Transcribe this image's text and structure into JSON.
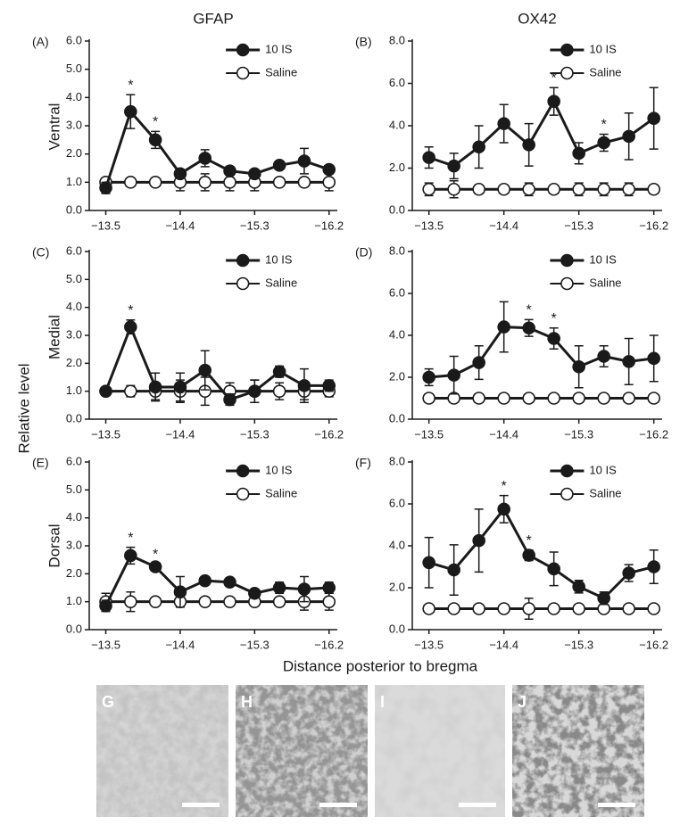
{
  "column_titles": [
    "GFAP",
    "OX42"
  ],
  "row_labels": [
    "Ventral",
    "Medial",
    "Dorsal"
  ],
  "y_label": "Relative level",
  "x_label": "Distance posterior to bregma",
  "image_labels": [
    "G",
    "H",
    "I",
    "J"
  ],
  "chart_data": [
    {
      "type": "line",
      "panel": "(A)",
      "x": [
        -13.5,
        -13.8,
        -14.1,
        -14.4,
        -14.7,
        -15.0,
        -15.3,
        -15.6,
        -15.9,
        -16.2
      ],
      "xlim": [
        -13.3,
        -16.3
      ],
      "xticks": [
        {
          "value": -13.5,
          "label": "−13.5"
        },
        {
          "value": -14.4,
          "label": "−14.4"
        },
        {
          "value": -15.3,
          "label": "−15.3"
        },
        {
          "value": -16.2,
          "label": "−16.2"
        }
      ],
      "ylim": [
        0,
        6
      ],
      "yticks": [
        {
          "value": 0,
          "label": "0.0"
        },
        {
          "value": 1,
          "label": "1.0"
        },
        {
          "value": 2,
          "label": "2.0"
        },
        {
          "value": 3,
          "label": "3.0"
        },
        {
          "value": 4,
          "label": "4.0"
        },
        {
          "value": 5,
          "label": "5.0"
        },
        {
          "value": 6,
          "label": "6.0"
        }
      ],
      "legend": "upper right",
      "series": [
        {
          "name": "10 IS",
          "color": "#1a1a1a",
          "fill": "#1a1a1a",
          "values": [
            0.8,
            3.5,
            2.5,
            1.3,
            1.85,
            1.4,
            1.3,
            1.6,
            1.75,
            1.45
          ],
          "errors": [
            0.2,
            0.6,
            0.3,
            0.1,
            0.3,
            0.15,
            0.1,
            0.1,
            0.45,
            0.1
          ]
        },
        {
          "name": "Saline",
          "color": "#1a1a1a",
          "fill": "#ffffff",
          "values": [
            1,
            1,
            1,
            1,
            1,
            1,
            1,
            1,
            1,
            1
          ],
          "errors": [
            0.15,
            0.05,
            0.15,
            0.3,
            0.3,
            0.3,
            0.3,
            0.1,
            0.15,
            0.3
          ]
        }
      ],
      "annotations": [
        {
          "text": "*",
          "x": -13.8
        },
        {
          "text": "*",
          "x": -14.1
        }
      ]
    },
    {
      "type": "line",
      "panel": "(B)",
      "x": [
        -13.5,
        -13.8,
        -14.1,
        -14.4,
        -14.7,
        -15.0,
        -15.3,
        -15.6,
        -15.9,
        -16.2
      ],
      "xlim": [
        -13.3,
        -16.3
      ],
      "xticks": [
        {
          "value": -13.5,
          "label": "−13.5"
        },
        {
          "value": -14.4,
          "label": "−14.4"
        },
        {
          "value": -15.3,
          "label": "−15.3"
        },
        {
          "value": -16.2,
          "label": "−16.2"
        }
      ],
      "ylim": [
        0,
        8
      ],
      "yticks": [
        {
          "value": 0,
          "label": "0.0"
        },
        {
          "value": 2,
          "label": "2.0"
        },
        {
          "value": 4,
          "label": "4.0"
        },
        {
          "value": 6,
          "label": "6.0"
        },
        {
          "value": 8,
          "label": "8.0"
        }
      ],
      "legend": "upper right",
      "series": [
        {
          "name": "10 IS",
          "color": "#1a1a1a",
          "fill": "#1a1a1a",
          "values": [
            2.5,
            2.1,
            3.0,
            4.1,
            3.1,
            5.15,
            2.7,
            3.2,
            3.5,
            4.35
          ],
          "errors": [
            0.5,
            0.6,
            1.0,
            0.9,
            1.0,
            0.65,
            0.5,
            0.4,
            1.1,
            1.45
          ]
        },
        {
          "name": "Saline",
          "color": "#1a1a1a",
          "fill": "#ffffff",
          "values": [
            1,
            1,
            1,
            1,
            1,
            1,
            1,
            1,
            1,
            1
          ],
          "errors": [
            0.3,
            0.4,
            0.2,
            0.2,
            0.3,
            0.2,
            0.3,
            0.3,
            0.3,
            0.2
          ]
        }
      ],
      "annotations": [
        {
          "text": "*",
          "x": -15.0
        },
        {
          "text": "*",
          "x": -15.6
        }
      ]
    },
    {
      "type": "line",
      "panel": "(C)",
      "x": [
        -13.5,
        -13.8,
        -14.1,
        -14.4,
        -14.7,
        -15.0,
        -15.3,
        -15.6,
        -15.9,
        -16.2
      ],
      "xlim": [
        -13.3,
        -16.3
      ],
      "xticks": [
        {
          "value": -13.5,
          "label": "−13.5"
        },
        {
          "value": -14.4,
          "label": "−14.4"
        },
        {
          "value": -15.3,
          "label": "−15.3"
        },
        {
          "value": -16.2,
          "label": "−16.2"
        }
      ],
      "ylim": [
        0,
        6
      ],
      "yticks": [
        {
          "value": 0,
          "label": "0.0"
        },
        {
          "value": 1,
          "label": "1.0"
        },
        {
          "value": 2,
          "label": "2.0"
        },
        {
          "value": 3,
          "label": "3.0"
        },
        {
          "value": 4,
          "label": "4.0"
        },
        {
          "value": 5,
          "label": "5.0"
        },
        {
          "value": 6,
          "label": "6.0"
        }
      ],
      "legend": "upper right",
      "series": [
        {
          "name": "10 IS",
          "color": "#1a1a1a",
          "fill": "#1a1a1a",
          "values": [
            1.0,
            3.3,
            1.15,
            1.15,
            1.75,
            0.7,
            1.0,
            1.7,
            1.2,
            1.2
          ],
          "errors": [
            0.1,
            0.25,
            0.5,
            0.5,
            0.7,
            0.2,
            0.4,
            0.2,
            0.6,
            0.2
          ]
        },
        {
          "name": "Saline",
          "color": "#1a1a1a",
          "fill": "#ffffff",
          "values": [
            1,
            1,
            1,
            1,
            1,
            1,
            1,
            1,
            1,
            1
          ],
          "errors": [
            0.1,
            0.2,
            0.3,
            0.4,
            0.5,
            0.3,
            0.4,
            0.3,
            0.3,
            0.2
          ]
        }
      ],
      "annotations": [
        {
          "text": "*",
          "x": -13.8
        }
      ]
    },
    {
      "type": "line",
      "panel": "(D)",
      "x": [
        -13.5,
        -13.8,
        -14.1,
        -14.4,
        -14.7,
        -15.0,
        -15.3,
        -15.6,
        -15.9,
        -16.2
      ],
      "xlim": [
        -13.3,
        -16.3
      ],
      "xticks": [
        {
          "value": -13.5,
          "label": "−13.5"
        },
        {
          "value": -14.4,
          "label": "−14.4"
        },
        {
          "value": -15.3,
          "label": "−15.3"
        },
        {
          "value": -16.2,
          "label": "−16.2"
        }
      ],
      "ylim": [
        0,
        8
      ],
      "yticks": [
        {
          "value": 0,
          "label": "0.0"
        },
        {
          "value": 2,
          "label": "2.0"
        },
        {
          "value": 4,
          "label": "4.0"
        },
        {
          "value": 6,
          "label": "6.0"
        },
        {
          "value": 8,
          "label": "8.0"
        }
      ],
      "legend": "upper right",
      "series": [
        {
          "name": "10 IS",
          "color": "#1a1a1a",
          "fill": "#1a1a1a",
          "values": [
            2.0,
            2.1,
            2.7,
            4.4,
            4.35,
            3.85,
            2.5,
            3.0,
            2.75,
            2.9
          ],
          "errors": [
            0.4,
            0.9,
            0.8,
            1.2,
            0.4,
            0.5,
            1.0,
            0.5,
            1.1,
            1.1
          ]
        },
        {
          "name": "Saline",
          "color": "#1a1a1a",
          "fill": "#ffffff",
          "values": [
            1,
            1,
            1,
            1,
            1,
            1,
            1,
            1,
            1,
            1
          ],
          "errors": [
            0.2,
            0.2,
            0.2,
            0.2,
            0.2,
            0.2,
            0.2,
            0.2,
            0.2,
            0.2
          ]
        }
      ],
      "annotations": [
        {
          "text": "*",
          "x": -14.7
        },
        {
          "text": "*",
          "x": -15.0
        }
      ]
    },
    {
      "type": "line",
      "panel": "(E)",
      "x": [
        -13.5,
        -13.8,
        -14.1,
        -14.4,
        -14.7,
        -15.0,
        -15.3,
        -15.6,
        -15.9,
        -16.2
      ],
      "xlim": [
        -13.3,
        -16.3
      ],
      "xticks": [
        {
          "value": -13.5,
          "label": "−13.5"
        },
        {
          "value": -14.4,
          "label": "−14.4"
        },
        {
          "value": -15.3,
          "label": "−15.3"
        },
        {
          "value": -16.2,
          "label": "−16.2"
        }
      ],
      "ylim": [
        0,
        6
      ],
      "yticks": [
        {
          "value": 0,
          "label": "0.0"
        },
        {
          "value": 1,
          "label": "1.0"
        },
        {
          "value": 2,
          "label": "2.0"
        },
        {
          "value": 3,
          "label": "3.0"
        },
        {
          "value": 4,
          "label": "4.0"
        },
        {
          "value": 5,
          "label": "5.0"
        },
        {
          "value": 6,
          "label": "6.0"
        }
      ],
      "legend": "upper right",
      "series": [
        {
          "name": "10 IS",
          "color": "#1a1a1a",
          "fill": "#1a1a1a",
          "values": [
            0.85,
            2.65,
            2.25,
            1.35,
            1.75,
            1.7,
            1.3,
            1.5,
            1.45,
            1.5
          ],
          "errors": [
            0.2,
            0.3,
            0.1,
            0.55,
            0.1,
            0.1,
            0.1,
            0.2,
            0.45,
            0.2
          ]
        },
        {
          "name": "Saline",
          "color": "#1a1a1a",
          "fill": "#ffffff",
          "values": [
            1,
            1,
            1,
            1,
            1,
            1,
            1,
            1,
            1,
            1
          ],
          "errors": [
            0.3,
            0.35,
            0.1,
            0.1,
            0.1,
            0.1,
            0.1,
            0.1,
            0.3,
            0.3
          ]
        }
      ],
      "annotations": [
        {
          "text": "*",
          "x": -13.8
        },
        {
          "text": "*",
          "x": -14.1
        }
      ]
    },
    {
      "type": "line",
      "panel": "(F)",
      "x": [
        -13.5,
        -13.8,
        -14.1,
        -14.4,
        -14.7,
        -15.0,
        -15.3,
        -15.6,
        -15.9,
        -16.2
      ],
      "xlim": [
        -13.3,
        -16.3
      ],
      "xticks": [
        {
          "value": -13.5,
          "label": "−13.5"
        },
        {
          "value": -14.4,
          "label": "−14.4"
        },
        {
          "value": -15.3,
          "label": "−15.3"
        },
        {
          "value": -16.2,
          "label": "−16.2"
        }
      ],
      "ylim": [
        0,
        8
      ],
      "yticks": [
        {
          "value": 0,
          "label": "0.0"
        },
        {
          "value": 2,
          "label": "2.0"
        },
        {
          "value": 4,
          "label": "4.0"
        },
        {
          "value": 6,
          "label": "6.0"
        },
        {
          "value": 8,
          "label": "8.0"
        }
      ],
      "legend": "upper right",
      "series": [
        {
          "name": "10 IS",
          "color": "#1a1a1a",
          "fill": "#1a1a1a",
          "values": [
            3.2,
            2.85,
            4.25,
            5.75,
            3.55,
            2.9,
            2.05,
            1.5,
            2.7,
            3.0
          ],
          "errors": [
            1.2,
            1.2,
            1.5,
            0.65,
            0.25,
            0.8,
            0.3,
            0.3,
            0.4,
            0.8
          ]
        },
        {
          "name": "Saline",
          "color": "#1a1a1a",
          "fill": "#ffffff",
          "values": [
            1,
            1,
            1,
            1,
            1,
            1,
            1,
            1,
            1,
            1
          ],
          "errors": [
            0.1,
            0.1,
            0.1,
            0.1,
            0.5,
            0.1,
            0.1,
            0.1,
            0.1,
            0.1
          ]
        }
      ],
      "annotations": [
        {
          "text": "*",
          "x": -14.4
        },
        {
          "text": "*",
          "x": -14.7
        }
      ]
    }
  ]
}
